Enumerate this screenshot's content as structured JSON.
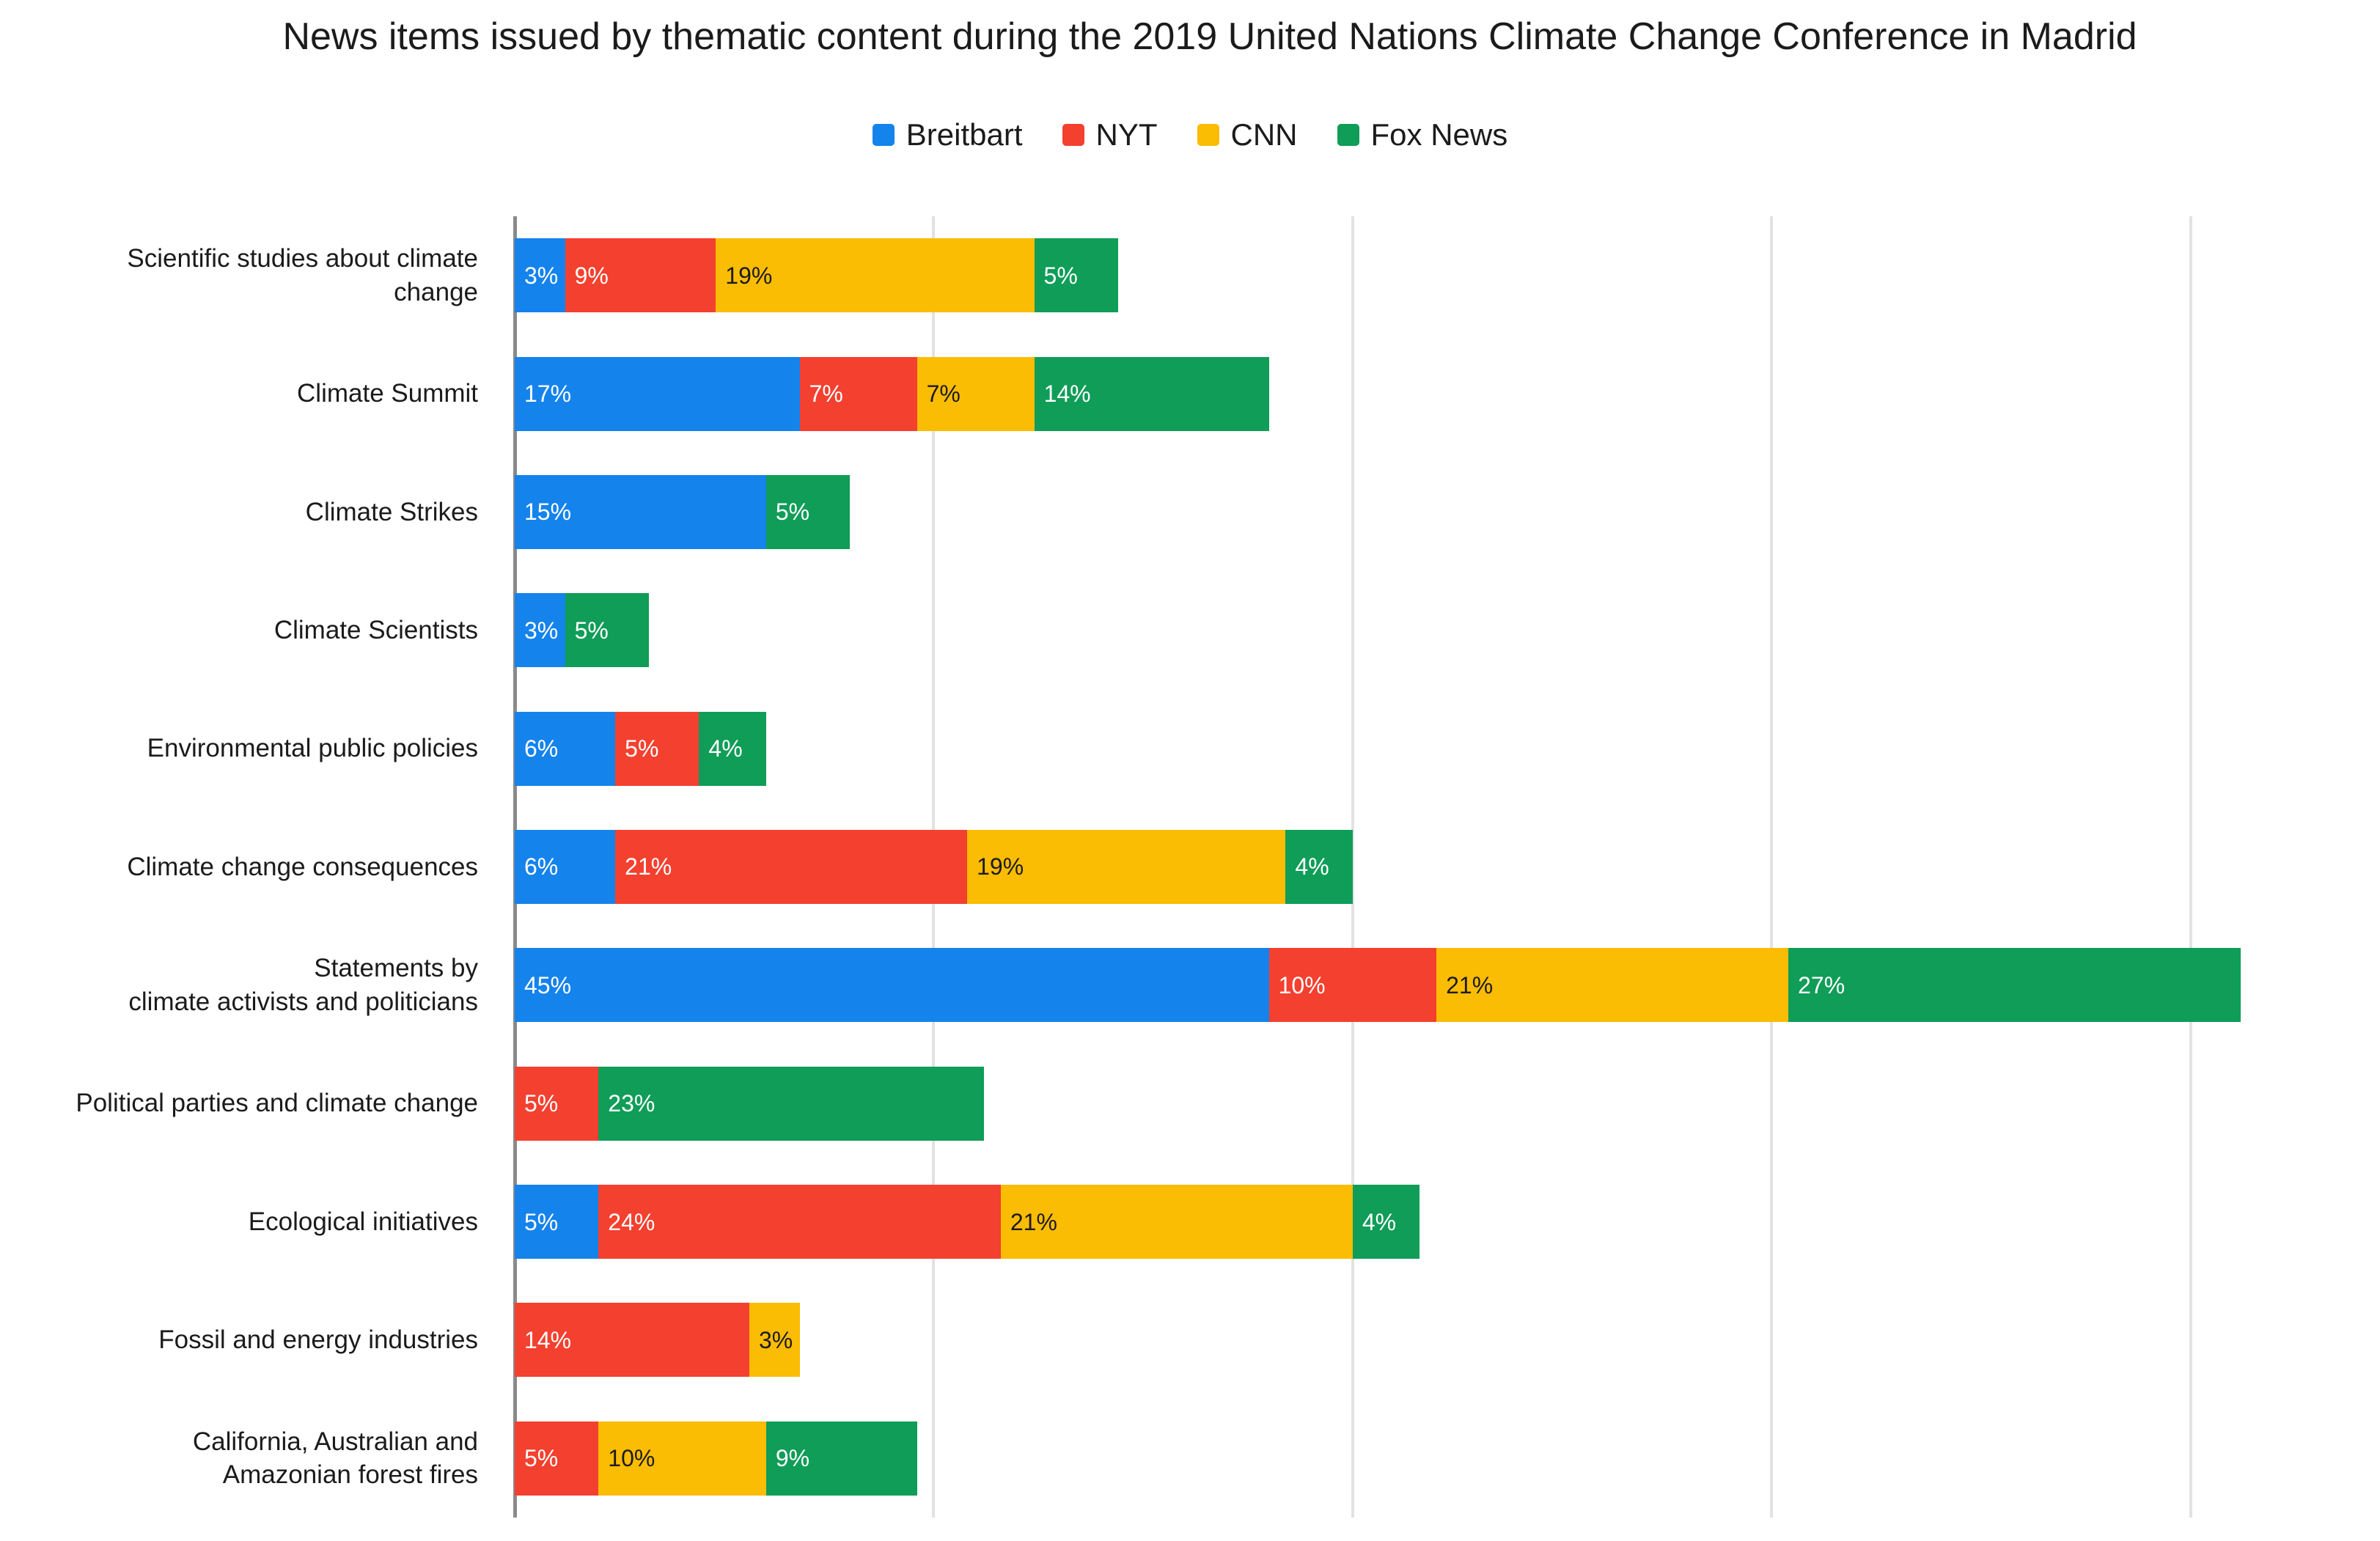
{
  "title": "News items issued by thematic content during the 2019 United Nations Climate Change Conference in Madrid",
  "legend": {
    "position": "top-center",
    "items": [
      {
        "label": "Breitbart",
        "color": "#1583EC"
      },
      {
        "label": "NYT",
        "color": "#F4402F"
      },
      {
        "label": "CNN",
        "color": "#FBBC04"
      },
      {
        "label": "Fox News",
        "color": "#0F9D58"
      }
    ]
  },
  "chart_data": {
    "type": "bar",
    "variant": "horizontal-stacked",
    "title": "News items issued by thematic content during the 2019 United Nations Climate Change Conference in Madrid",
    "value_suffix": "%",
    "xlabel": "",
    "ylabel": "",
    "xlim": [
      0,
      111.3
    ],
    "gridline_values": [
      0,
      25,
      50,
      75,
      100
    ],
    "grid": "vertical-light-gray, darker zero axis, no tick labels visible",
    "categories": [
      "Scientific studies about climate\nchange",
      "Climate Summit",
      "Climate Strikes",
      "Climate Scientists",
      "Environmental public policies",
      "Climate change consequences",
      "Statements by\nclimate activists and politicians",
      "Political parties and climate change",
      "Ecological initiatives",
      "Fossil and energy industries",
      "California, Australian and\nAmazonian forest fires"
    ],
    "series": [
      {
        "name": "Breitbart",
        "color": "#1583EC",
        "label_color": "#ffffff",
        "values": [
          3,
          17,
          15,
          3,
          6,
          6,
          45,
          0,
          5,
          0,
          0
        ]
      },
      {
        "name": "NYT",
        "color": "#F4402F",
        "label_color": "#ffffff",
        "values": [
          9,
          7,
          0,
          0,
          5,
          21,
          10,
          5,
          24,
          14,
          5
        ]
      },
      {
        "name": "CNN",
        "color": "#FBBC04",
        "label_color": "#1b1b1b",
        "values": [
          19,
          7,
          0,
          0,
          0,
          19,
          21,
          0,
          21,
          3,
          10
        ]
      },
      {
        "name": "Fox News",
        "color": "#0F9D58",
        "label_color": "#ffffff",
        "values": [
          5,
          14,
          5,
          5,
          4,
          4,
          27,
          23,
          4,
          0,
          9
        ]
      }
    ]
  }
}
